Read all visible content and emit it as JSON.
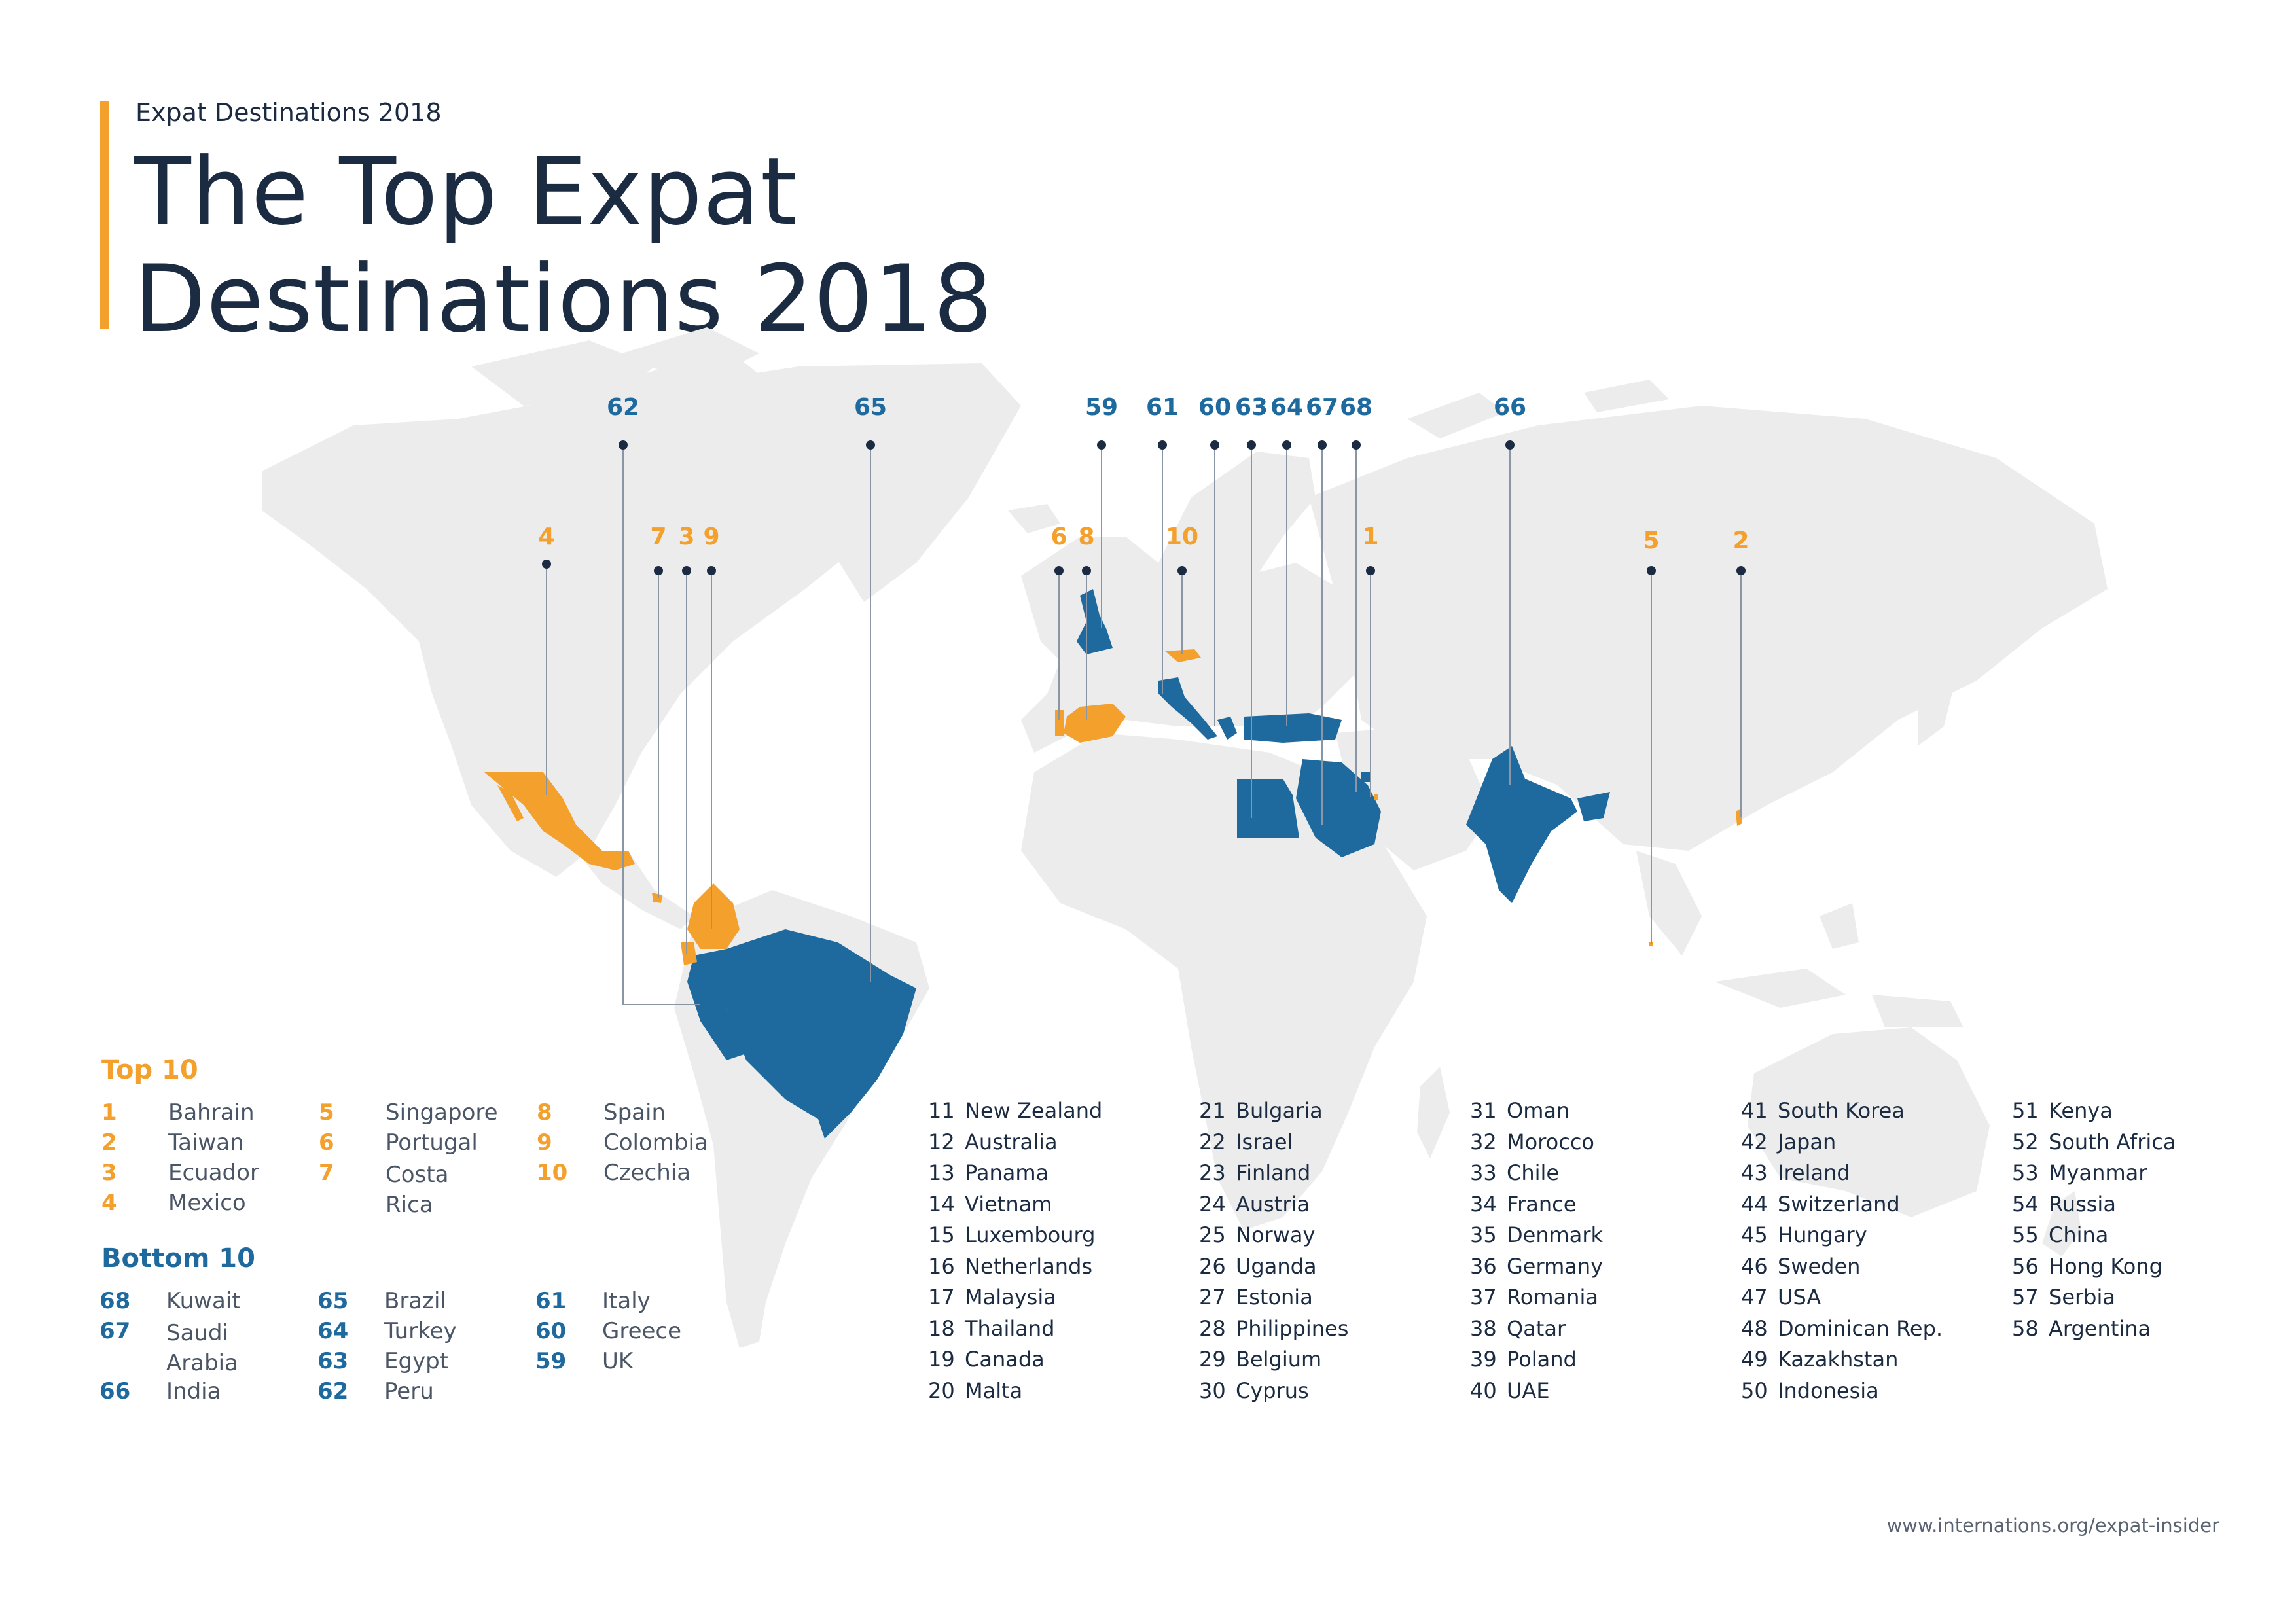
{
  "header": {
    "kicker": "Expat Destinations 2018",
    "title_line1": "The Top Expat",
    "title_line2": "Destinations 2018"
  },
  "colors": {
    "top": "#f3a02c",
    "bottom": "#1e6a9e",
    "land": "#ececec",
    "text": "#1b2b42"
  },
  "legend": {
    "top_heading": "Top 10",
    "bottom_heading": "Bottom 10",
    "top": [
      {
        "rank": "1",
        "name": "Bahrain"
      },
      {
        "rank": "2",
        "name": "Taiwan"
      },
      {
        "rank": "3",
        "name": "Ecuador"
      },
      {
        "rank": "4",
        "name": "Mexico"
      },
      {
        "rank": "5",
        "name": "Singapore"
      },
      {
        "rank": "6",
        "name": "Portugal"
      },
      {
        "rank": "7",
        "name": "Costa Rica"
      },
      {
        "rank": "8",
        "name": "Spain"
      },
      {
        "rank": "9",
        "name": "Colombia"
      },
      {
        "rank": "10",
        "name": "Czechia"
      }
    ],
    "bottom": [
      {
        "rank": "68",
        "name": "Kuwait"
      },
      {
        "rank": "67",
        "name": "Saudi Arabia"
      },
      {
        "rank": "66",
        "name": "India"
      },
      {
        "rank": "65",
        "name": "Brazil"
      },
      {
        "rank": "64",
        "name": "Turkey"
      },
      {
        "rank": "63",
        "name": "Egypt"
      },
      {
        "rank": "62",
        "name": "Peru"
      },
      {
        "rank": "61",
        "name": "Italy"
      },
      {
        "rank": "60",
        "name": "Greece"
      },
      {
        "rank": "59",
        "name": "UK"
      }
    ]
  },
  "rankings": [
    {
      "rank": "11",
      "name": "New Zealand"
    },
    {
      "rank": "12",
      "name": "Australia"
    },
    {
      "rank": "13",
      "name": "Panama"
    },
    {
      "rank": "14",
      "name": "Vietnam"
    },
    {
      "rank": "15",
      "name": "Luxembourg"
    },
    {
      "rank": "16",
      "name": "Netherlands"
    },
    {
      "rank": "17",
      "name": "Malaysia"
    },
    {
      "rank": "18",
      "name": "Thailand"
    },
    {
      "rank": "19",
      "name": "Canada"
    },
    {
      "rank": "20",
      "name": "Malta"
    },
    {
      "rank": "21",
      "name": "Bulgaria"
    },
    {
      "rank": "22",
      "name": "Israel"
    },
    {
      "rank": "23",
      "name": "Finland"
    },
    {
      "rank": "24",
      "name": "Austria"
    },
    {
      "rank": "25",
      "name": "Norway"
    },
    {
      "rank": "26",
      "name": "Uganda"
    },
    {
      "rank": "27",
      "name": "Estonia"
    },
    {
      "rank": "28",
      "name": "Philippines"
    },
    {
      "rank": "29",
      "name": "Belgium"
    },
    {
      "rank": "30",
      "name": "Cyprus"
    },
    {
      "rank": "31",
      "name": "Oman"
    },
    {
      "rank": "32",
      "name": "Morocco"
    },
    {
      "rank": "33",
      "name": "Chile"
    },
    {
      "rank": "34",
      "name": "France"
    },
    {
      "rank": "35",
      "name": "Denmark"
    },
    {
      "rank": "36",
      "name": "Germany"
    },
    {
      "rank": "37",
      "name": "Romania"
    },
    {
      "rank": "38",
      "name": "Qatar"
    },
    {
      "rank": "39",
      "name": "Poland"
    },
    {
      "rank": "40",
      "name": "UAE"
    },
    {
      "rank": "41",
      "name": "South Korea"
    },
    {
      "rank": "42",
      "name": "Japan"
    },
    {
      "rank": "43",
      "name": "Ireland"
    },
    {
      "rank": "44",
      "name": "Switzerland"
    },
    {
      "rank": "45",
      "name": "Hungary"
    },
    {
      "rank": "46",
      "name": "Sweden"
    },
    {
      "rank": "47",
      "name": "USA"
    },
    {
      "rank": "48",
      "name": "Dominican Rep."
    },
    {
      "rank": "49",
      "name": "Kazakhstan"
    },
    {
      "rank": "50",
      "name": "Indonesia"
    },
    {
      "rank": "51",
      "name": "Kenya"
    },
    {
      "rank": "52",
      "name": "South Africa"
    },
    {
      "rank": "53",
      "name": "Myanmar"
    },
    {
      "rank": "54",
      "name": "Russia"
    },
    {
      "rank": "55",
      "name": "China"
    },
    {
      "rank": "56",
      "name": "Hong Kong"
    },
    {
      "rank": "57",
      "name": "Serbia"
    },
    {
      "rank": "58",
      "name": "Argentina"
    }
  ],
  "map_callouts": [
    "62",
    "65",
    "59",
    "61",
    "60",
    "63",
    "64",
    "67",
    "68",
    "66",
    "4",
    "7",
    "3",
    "9",
    "6",
    "8",
    "10",
    "1",
    "5",
    "2"
  ],
  "footer": {
    "url": "www.internations.org/expat-insider"
  }
}
